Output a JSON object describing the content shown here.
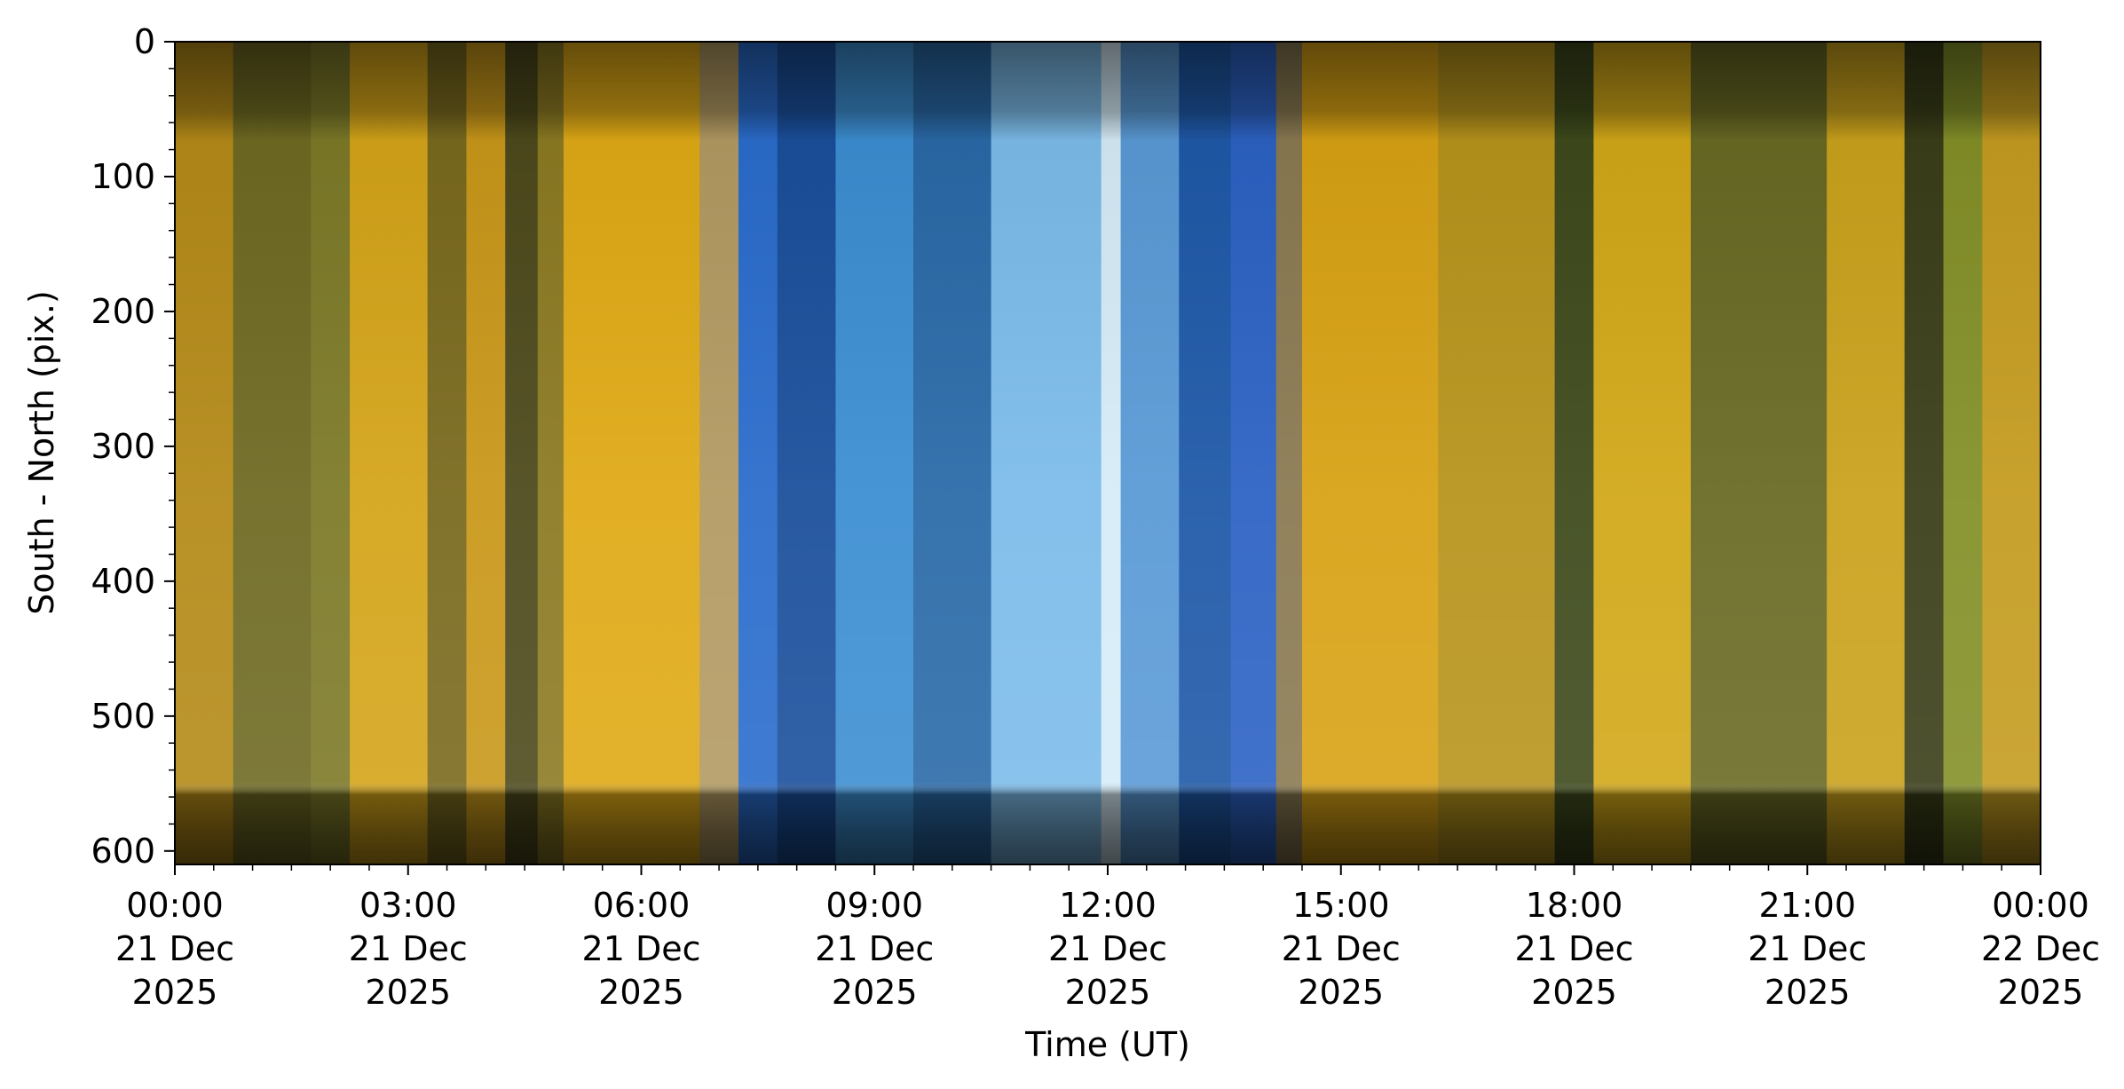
{
  "chart_data": {
    "type": "heatmap",
    "title": "",
    "xlabel": "Time (UT)",
    "ylabel": "South - North (pix.)",
    "xlim": [
      "2025-12-21T00:00",
      "2025-12-22T00:00"
    ],
    "ylim": [
      610,
      0
    ],
    "y_inverted": true,
    "grid": false,
    "legend": "none",
    "x_ticks": [
      {
        "value": "2025-12-21T00:00",
        "line1": "00:00",
        "line2": "21 Dec",
        "line3": "2025"
      },
      {
        "value": "2025-12-21T03:00",
        "line1": "03:00",
        "line2": "21 Dec",
        "line3": "2025"
      },
      {
        "value": "2025-12-21T06:00",
        "line1": "06:00",
        "line2": "21 Dec",
        "line3": "2025"
      },
      {
        "value": "2025-12-21T09:00",
        "line1": "09:00",
        "line2": "21 Dec",
        "line3": "2025"
      },
      {
        "value": "2025-12-21T12:00",
        "line1": "12:00",
        "line2": "21 Dec",
        "line3": "2025"
      },
      {
        "value": "2025-12-21T15:00",
        "line1": "15:00",
        "line2": "21 Dec",
        "line3": "2025"
      },
      {
        "value": "2025-12-21T18:00",
        "line1": "18:00",
        "line2": "21 Dec",
        "line3": "2025"
      },
      {
        "value": "2025-12-21T21:00",
        "line1": "21:00",
        "line2": "21 Dec",
        "line3": "2025"
      },
      {
        "value": "2025-12-22T00:00",
        "line1": "00:00",
        "line2": "22 Dec",
        "line3": "2025"
      }
    ],
    "y_ticks": [
      0,
      100,
      200,
      300,
      400,
      500,
      600
    ],
    "y_minor_step": 20,
    "x_minor_step_minutes": 30,
    "time_bands": [
      {
        "start": "2025-12-21T00:00",
        "end": "2025-12-21T00:45",
        "color": "#b48a18"
      },
      {
        "start": "2025-12-21T00:45",
        "end": "2025-12-21T01:45",
        "color": "#6f6a22"
      },
      {
        "start": "2025-12-21T01:45",
        "end": "2025-12-21T02:15",
        "color": "#7d7a28"
      },
      {
        "start": "2025-12-21T02:15",
        "end": "2025-12-21T03:15",
        "color": "#d4a419"
      },
      {
        "start": "2025-12-21T03:15",
        "end": "2025-12-21T03:45",
        "color": "#7a6a1e"
      },
      {
        "start": "2025-12-21T03:45",
        "end": "2025-12-21T04:15",
        "color": "#c9981a"
      },
      {
        "start": "2025-12-21T04:15",
        "end": "2025-12-21T04:40",
        "color": "#4e4a1c"
      },
      {
        "start": "2025-12-21T04:40",
        "end": "2025-12-21T05:00",
        "color": "#8c7a22"
      },
      {
        "start": "2025-12-21T05:00",
        "end": "2025-12-21T06:45",
        "color": "#e0aa16"
      },
      {
        "start": "2025-12-21T06:45",
        "end": "2025-12-21T07:15",
        "color": "#b39a62"
      },
      {
        "start": "2025-12-21T07:15",
        "end": "2025-12-21T07:45",
        "color": "#2a6ccc"
      },
      {
        "start": "2025-12-21T07:45",
        "end": "2025-12-21T08:30",
        "color": "#1a4f9c"
      },
      {
        "start": "2025-12-21T08:30",
        "end": "2025-12-21T09:30",
        "color": "#3c8ed2"
      },
      {
        "start": "2025-12-21T09:30",
        "end": "2025-12-21T10:30",
        "color": "#2a6aa8"
      },
      {
        "start": "2025-12-21T10:30",
        "end": "2025-12-21T11:55",
        "color": "#7cbcea"
      },
      {
        "start": "2025-12-21T11:55",
        "end": "2025-12-21T12:10",
        "color": "#d6ecf8"
      },
      {
        "start": "2025-12-21T12:10",
        "end": "2025-12-21T12:55",
        "color": "#5a9ad6"
      },
      {
        "start": "2025-12-21T12:55",
        "end": "2025-12-21T13:35",
        "color": "#1f59a8"
      },
      {
        "start": "2025-12-21T13:35",
        "end": "2025-12-21T14:10",
        "color": "#2c62c4"
      },
      {
        "start": "2025-12-21T14:10",
        "end": "2025-12-21T14:30",
        "color": "#8a7a52"
      },
      {
        "start": "2025-12-21T14:30",
        "end": "2025-12-21T16:15",
        "color": "#d8a214"
      },
      {
        "start": "2025-12-21T16:15",
        "end": "2025-12-21T17:45",
        "color": "#b8941c"
      },
      {
        "start": "2025-12-21T17:45",
        "end": "2025-12-21T18:15",
        "color": "#3e4a1c"
      },
      {
        "start": "2025-12-21T18:15",
        "end": "2025-12-21T19:30",
        "color": "#d2a818"
      },
      {
        "start": "2025-12-21T19:30",
        "end": "2025-12-21T21:15",
        "color": "#6a6a24"
      },
      {
        "start": "2025-12-21T21:15",
        "end": "2025-12-21T22:15",
        "color": "#caa21c"
      },
      {
        "start": "2025-12-21T22:15",
        "end": "2025-12-21T22:45",
        "color": "#3a3e18"
      },
      {
        "start": "2025-12-21T22:45",
        "end": "2025-12-21T23:15",
        "color": "#849028"
      },
      {
        "start": "2025-12-21T23:15",
        "end": "2025-12-22T00:00",
        "color": "#c49c20"
      }
    ]
  }
}
